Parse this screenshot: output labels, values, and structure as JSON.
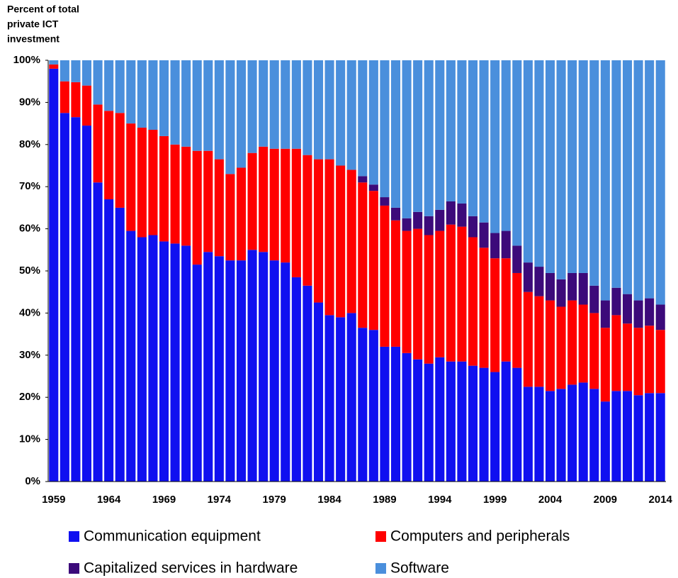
{
  "chart_data": {
    "type": "stacked_bar",
    "ylabel": [
      "Percent of total",
      "private ICT",
      "investment"
    ],
    "categories": [
      "1959",
      null,
      null,
      null,
      null,
      "1964",
      null,
      null,
      null,
      null,
      "1969",
      null,
      null,
      null,
      null,
      "1974",
      null,
      null,
      null,
      null,
      "1979",
      null,
      null,
      null,
      null,
      "1984",
      null,
      null,
      null,
      null,
      "1989",
      null,
      null,
      null,
      null,
      "1994",
      null,
      null,
      null,
      null,
      "1999",
      null,
      null,
      null,
      null,
      "2004",
      null,
      null,
      null,
      null,
      "2009",
      null,
      null,
      null,
      null,
      "2014"
    ],
    "series": [
      {
        "name": "Communication equipment",
        "color": "#1010f0",
        "values": [
          98,
          87.5,
          86.5,
          84.5,
          71,
          67,
          65,
          59.5,
          58,
          58.5,
          57,
          56.5,
          56,
          51.5,
          54.5,
          53.5,
          52.5,
          52.5,
          55,
          54.5,
          52.5,
          52,
          48.5,
          46.5,
          42.5,
          39.5,
          39,
          40,
          36.5,
          36,
          32,
          32,
          30.5,
          29,
          28,
          29.5,
          28.5,
          28.5,
          27.5,
          27,
          26,
          28.5,
          27,
          22.5,
          22.5,
          21.5,
          22,
          23,
          23.5,
          22,
          19,
          21.5,
          21.5,
          20.5,
          21,
          21
        ]
      },
      {
        "name": "Computers and peripherals",
        "color": "#ff0000",
        "values": [
          1,
          7.5,
          8.3,
          9.5,
          18.5,
          21,
          22.5,
          25.5,
          26,
          25,
          25,
          23.5,
          23.5,
          27,
          24,
          23,
          20.5,
          22,
          23,
          25,
          26.5,
          27,
          30.5,
          31,
          34,
          37,
          36,
          34,
          34.5,
          33,
          33.5,
          30,
          29,
          31,
          30.5,
          30,
          32.5,
          32,
          30.5,
          28.5,
          27,
          24.5,
          22.5,
          22.5,
          21.5,
          21.5,
          19.5,
          20,
          18.5,
          18,
          17.5,
          18,
          16,
          16,
          16,
          15
        ]
      },
      {
        "name": "Capitalized services in hardware",
        "color": "#3c0a7a",
        "values": [
          0,
          0,
          0,
          0,
          0,
          0,
          0,
          0,
          0,
          0,
          0,
          0,
          0,
          0,
          0,
          0,
          0,
          0,
          0,
          0,
          0,
          0,
          0,
          0,
          0,
          0,
          0,
          0,
          1.5,
          1.5,
          2,
          3,
          3,
          4,
          4.5,
          5,
          5.5,
          5.5,
          5,
          6,
          6,
          6.5,
          6.5,
          7,
          7,
          6.5,
          6.5,
          6.5,
          7.5,
          6.5,
          6.5,
          6.5,
          7,
          6.5,
          6.5,
          6
        ]
      },
      {
        "name": "Software",
        "color": "#4a8fdc",
        "values": [
          1,
          5,
          5.2,
          6,
          10.5,
          12,
          12.5,
          15,
          16,
          16.5,
          18,
          20,
          20.5,
          21.5,
          21.5,
          23.5,
          27,
          25.5,
          22,
          20.5,
          21,
          21,
          21,
          22.5,
          23.5,
          23.5,
          25,
          26,
          27.5,
          29.5,
          32.5,
          35,
          37.5,
          36,
          37,
          35.5,
          33.5,
          34,
          37,
          38.5,
          41,
          40.5,
          44,
          48,
          49,
          50.5,
          52,
          50.5,
          50.5,
          53.5,
          57,
          54,
          55.5,
          57,
          56.5,
          58
        ]
      }
    ],
    "ylim": [
      0,
      100
    ],
    "yticks": [
      {
        "value": 0,
        "label": "0%"
      },
      {
        "value": 10,
        "label": "10%"
      },
      {
        "value": 20,
        "label": "20%"
      },
      {
        "value": 30,
        "label": "30%"
      },
      {
        "value": 40,
        "label": "40%"
      },
      {
        "value": 50,
        "label": "50%"
      },
      {
        "value": 60,
        "label": "60%"
      },
      {
        "value": 70,
        "label": "70%"
      },
      {
        "value": 80,
        "label": "80%"
      },
      {
        "value": 90,
        "label": "90%"
      },
      {
        "value": 100,
        "label": "100%"
      }
    ],
    "grid": false
  }
}
